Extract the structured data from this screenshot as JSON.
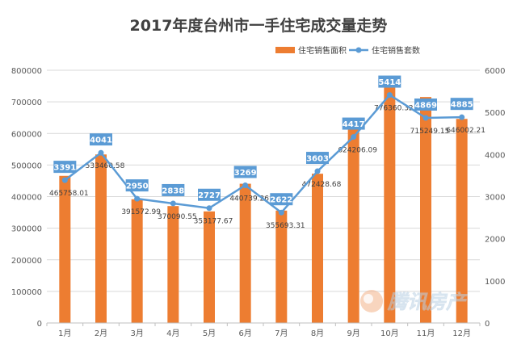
{
  "chart_data": {
    "type": "bar+line",
    "title": "2017年度台州市一手住宅成交量走势",
    "categories": [
      "1月",
      "2月",
      "3月",
      "4月",
      "5月",
      "6月",
      "7月",
      "8月",
      "9月",
      "10月",
      "11月",
      "12月"
    ],
    "series": [
      {
        "name": "住宅销售面积",
        "kind": "bar",
        "axis": "left",
        "color": "#ED7D31",
        "values": [
          465758.01,
          533460.58,
          391572.99,
          370090.55,
          353177.67,
          440739.26,
          355693.31,
          472428.68,
          624206.09,
          776360.32,
          715249.15,
          646002.21
        ],
        "labels": [
          "465758.01",
          "533460.58",
          "391572.99",
          "370090.55",
          "353177.67",
          "440739.26",
          "355693.31",
          "472428.68",
          "624206.09",
          "776360.32",
          "715249.15",
          "646002.21"
        ]
      },
      {
        "name": "住宅销售套数",
        "kind": "line",
        "axis": "right",
        "color": "#5B9BD5",
        "values": [
          3391,
          4041,
          2950,
          2838,
          2727,
          3269,
          2622,
          3603,
          4417,
          5414,
          4869,
          4885
        ],
        "labels": [
          "3391",
          "4041",
          "2950",
          "2838",
          "2727",
          "3269",
          "2622",
          "3603",
          "4417",
          "5414",
          "4869",
          "4885"
        ]
      }
    ],
    "y_left": {
      "min": 0,
      "max": 800000,
      "ticks": [
        "0",
        "100000",
        "200000",
        "300000",
        "400000",
        "500000",
        "600000",
        "700000",
        "800000"
      ]
    },
    "y_right": {
      "min": 0,
      "max": 6000,
      "ticks": [
        "0",
        "1000",
        "2000",
        "3000",
        "4000",
        "5000",
        "6000"
      ]
    },
    "legend_position": "top-right",
    "grid": true
  },
  "watermark": {
    "text": "腾讯房产"
  }
}
